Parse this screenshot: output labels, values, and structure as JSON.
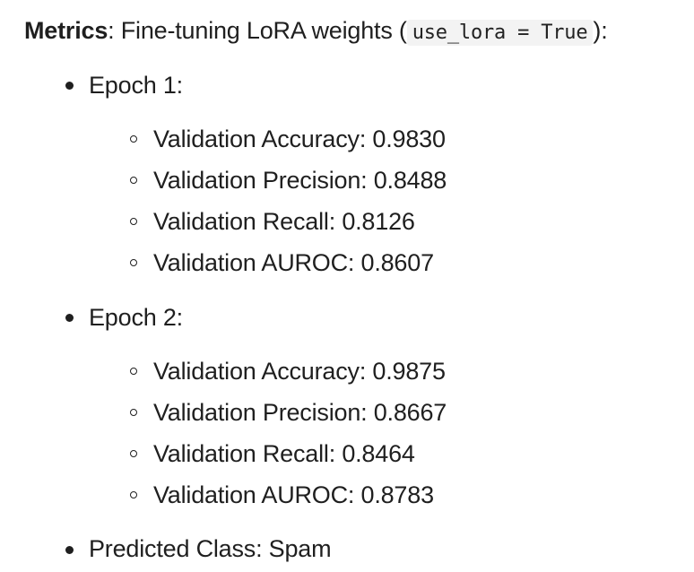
{
  "heading": {
    "label": "Metrics",
    "text_before": ": Fine-tuning LoRA weights (",
    "code": "use_lora = True",
    "text_after": "):"
  },
  "items": [
    {
      "label": "Epoch 1:",
      "sub_items": [
        "Validation Accuracy: 0.9830",
        "Validation Precision: 0.8488",
        "Validation Recall: 0.8126",
        "Validation AUROC: 0.8607"
      ]
    },
    {
      "label": "Epoch 2:",
      "sub_items": [
        "Validation Accuracy: 0.9875",
        "Validation Precision: 0.8667",
        "Validation Recall: 0.8464",
        "Validation AUROC: 0.8783"
      ]
    },
    {
      "label": "Predicted Class: Spam",
      "sub_items": []
    }
  ]
}
